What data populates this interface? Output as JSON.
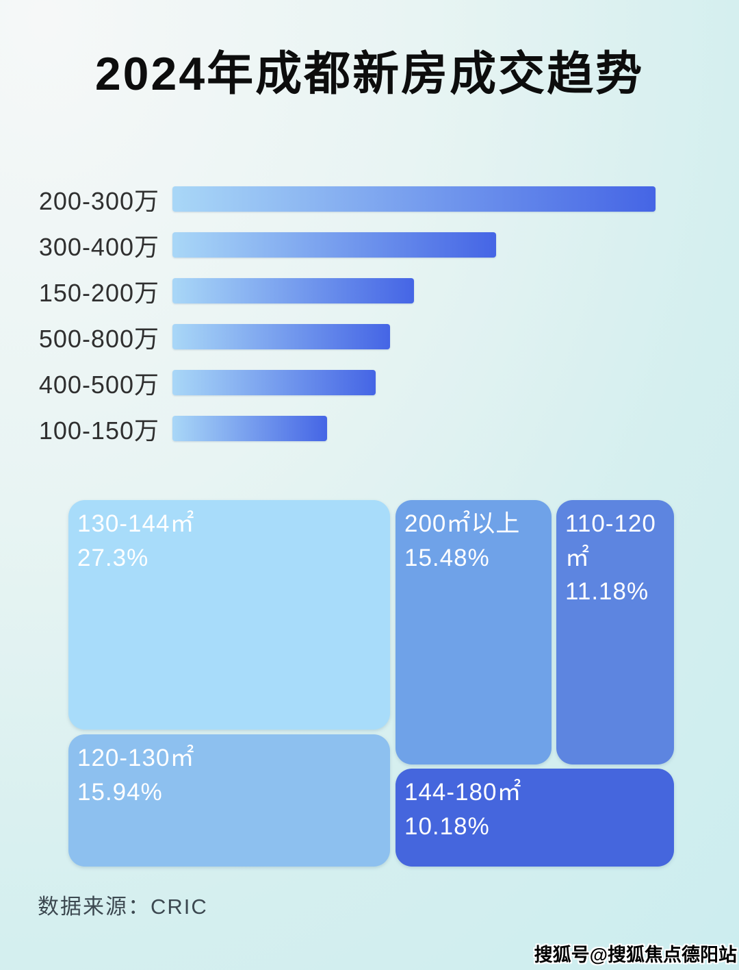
{
  "page": {
    "title": "2024年成都新房成交趋势",
    "source": "数据来源：CRIC",
    "watermark": "搜狐号@搜狐焦点德阳站"
  },
  "colors": {
    "background_center": "#f6f8f8",
    "background_edge": "#c9ecef",
    "bar_gradient_start": "#a9d7f7",
    "bar_gradient_end": "#4565e5",
    "title_text": "#0d0d0d",
    "bar_label_text": "#2f2f2f",
    "treemap_text": "#ffffff",
    "source_text": "#3c4850"
  },
  "chart_data": [
    {
      "type": "bar",
      "orientation": "horizontal",
      "title": "2024年成都新房成交趋势",
      "categories": [
        "200-300万",
        "300-400万",
        "150-200万",
        "500-800万",
        "400-500万",
        "100-150万"
      ],
      "values": [
        100,
        67,
        50,
        45,
        42,
        32
      ],
      "values_note": "no numeric axis shown in image; values are bar lengths as percent of the longest bar",
      "xlabel": "",
      "ylabel": "",
      "grid": false,
      "legend": false
    },
    {
      "type": "treemap",
      "title": "",
      "blocks": [
        {
          "label": "130-144㎡",
          "pct_label": "27.3%",
          "value": 27.3,
          "color": "#a8dcfa"
        },
        {
          "label": "200㎡以上",
          "pct_label": "15.48%",
          "value": 15.48,
          "color": "#6fa2e8"
        },
        {
          "label": "110-120㎡",
          "pct_label": "11.18%",
          "value": 11.18,
          "color": "#5d85e0"
        },
        {
          "label": "120-130㎡",
          "pct_label": "15.94%",
          "value": 15.94,
          "color": "#8dc0ef"
        },
        {
          "label": "144-180㎡",
          "pct_label": "10.18%",
          "value": 10.18,
          "color": "#4566dd"
        }
      ]
    }
  ]
}
